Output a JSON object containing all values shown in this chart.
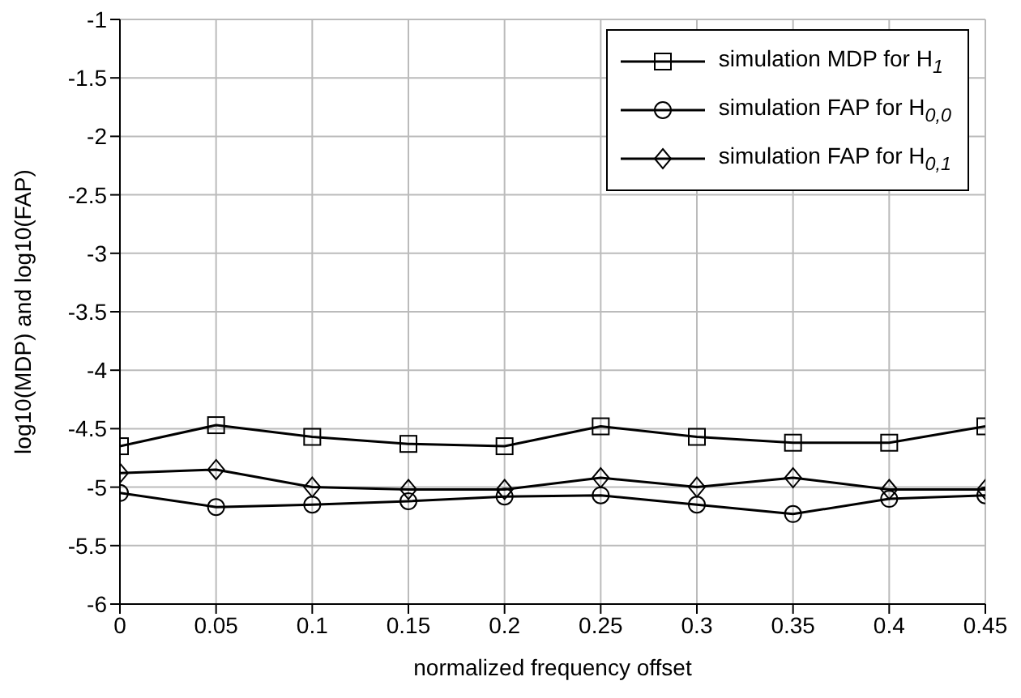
{
  "chart_data": {
    "type": "line",
    "xlabel": "normalized frequency offset",
    "ylabel": "log10(MDP) and log10(FAP)",
    "x": [
      0,
      0.05,
      0.1,
      0.15,
      0.2,
      0.25,
      0.3,
      0.35,
      0.4,
      0.45
    ],
    "series": [
      {
        "name": "simulation MDP for H$_{1}$",
        "color": "#000000",
        "marker": "square",
        "values": [
          -4.65,
          -4.47,
          -4.57,
          -4.63,
          -4.65,
          -4.48,
          -4.57,
          -4.62,
          -4.62,
          -4.48
        ]
      },
      {
        "name": "simulation FAP for H$_{0,0}$",
        "color": "#000000",
        "marker": "circle",
        "values": [
          -5.05,
          -5.17,
          -5.15,
          -5.12,
          -5.08,
          -5.07,
          -5.15,
          -5.23,
          -5.1,
          -5.07
        ]
      },
      {
        "name": "simulation FAP for H$_{0,1}$",
        "color": "#000000",
        "marker": "diamond",
        "values": [
          -4.88,
          -4.85,
          -5.0,
          -5.02,
          -5.02,
          -4.92,
          -5.0,
          -4.92,
          -5.02,
          -5.02
        ]
      }
    ],
    "xlim": [
      0,
      0.45
    ],
    "xticks": [
      0,
      0.05,
      0.1,
      0.15,
      0.2,
      0.25,
      0.3,
      0.35,
      0.4,
      0.45
    ],
    "ylim": [
      -6,
      -1
    ],
    "yticks": [
      -6,
      -5.5,
      -5,
      -4.5,
      -4,
      -3.5,
      -3,
      -2.5,
      -2,
      -1.5,
      -1
    ],
    "grid": true,
    "legend": "top right",
    "line_style": "solid"
  }
}
